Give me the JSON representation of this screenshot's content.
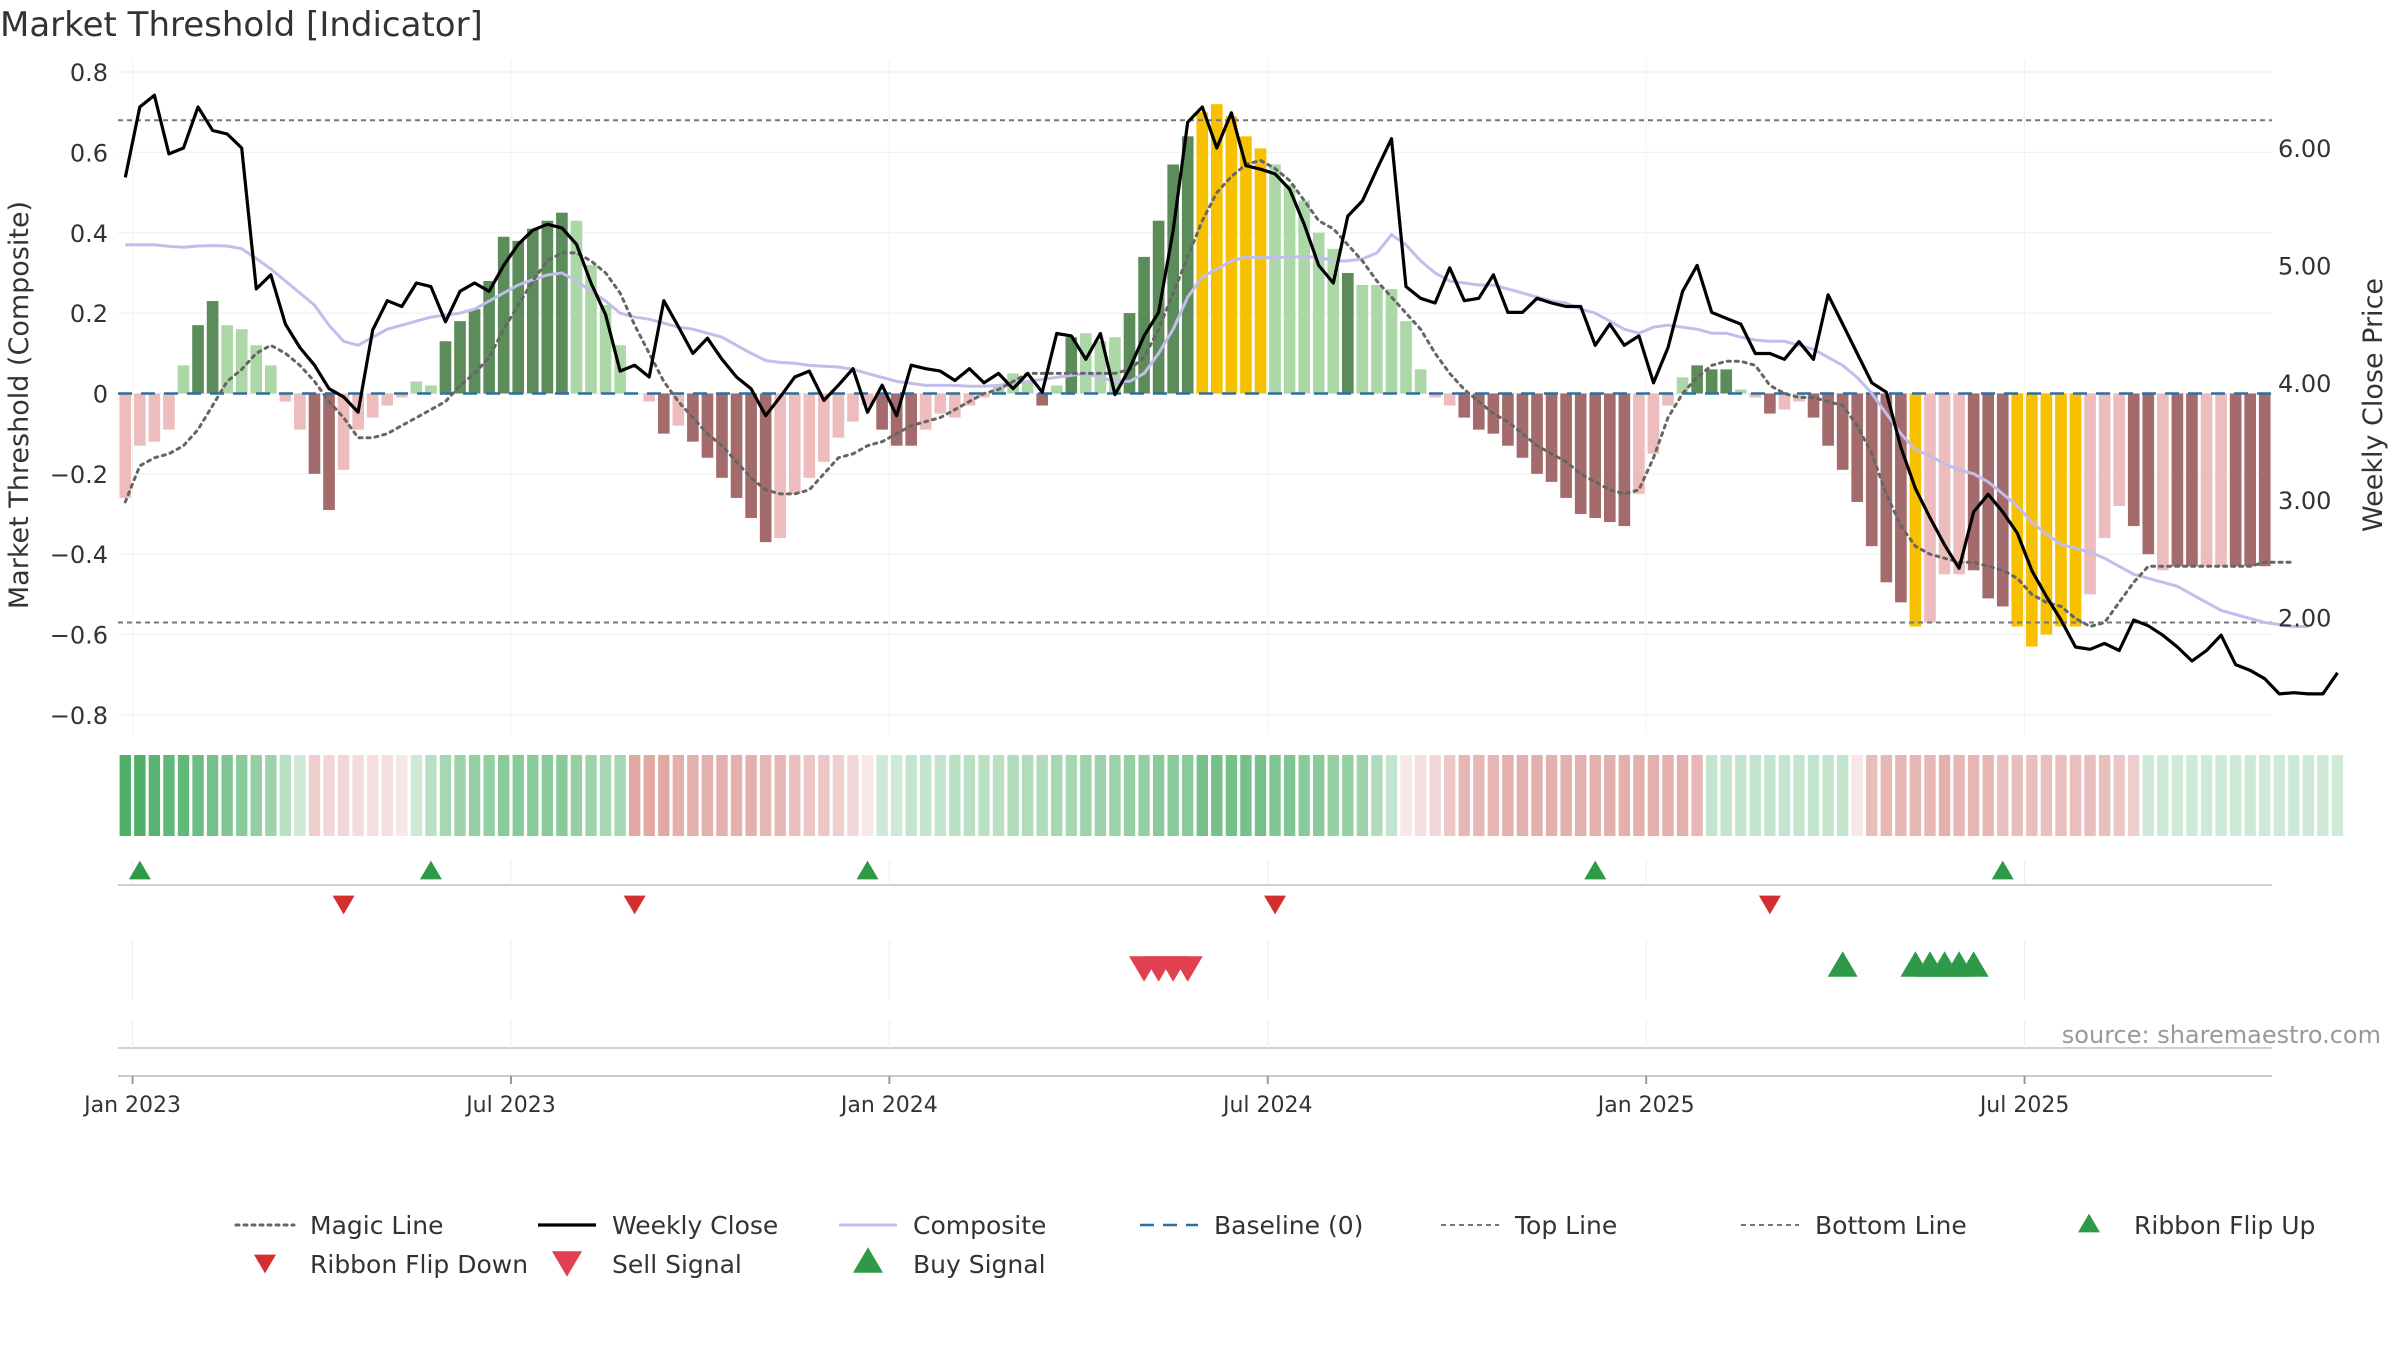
{
  "chart_data": {
    "type": "bar",
    "title": "Market Threshold [Indicator]",
    "ylabel_left": "Market Threshold (Composite)",
    "ylabel_right": "Weekly Close Price",
    "source": "source: sharemaestro.com",
    "ylim_left": [
      -0.85,
      0.83
    ],
    "ylim_right": [
      1.0,
      6.75
    ],
    "y_ticks_left": [
      {
        "value": 0.8,
        "label": "0.8"
      },
      {
        "value": 0.6,
        "label": "0.6"
      },
      {
        "value": 0.4,
        "label": "0.4"
      },
      {
        "value": 0.2,
        "label": "0.2"
      },
      {
        "value": 0.0,
        "label": "0"
      },
      {
        "value": -0.2,
        "label": "−0.2"
      },
      {
        "value": -0.4,
        "label": "−0.4"
      },
      {
        "value": -0.6,
        "label": "−0.6"
      },
      {
        "value": -0.8,
        "label": "−0.8"
      }
    ],
    "y_ticks_right": [
      {
        "value": 6.0,
        "label": "6.00"
      },
      {
        "value": 5.0,
        "label": "5.00"
      },
      {
        "value": 4.0,
        "label": "4.00"
      },
      {
        "value": 3.0,
        "label": "3.00"
      },
      {
        "value": 2.0,
        "label": "2.00"
      }
    ],
    "x_ticks": [
      {
        "index": 0.5,
        "label": "Jan 2023"
      },
      {
        "index": 26.5,
        "label": "Jul 2023"
      },
      {
        "index": 52.5,
        "label": "Jan 2024"
      },
      {
        "index": 78.5,
        "label": "Jul 2024"
      },
      {
        "index": 104.5,
        "label": "Jan 2025"
      },
      {
        "index": 130.5,
        "label": "Jul 2025"
      }
    ],
    "top_line": 0.68,
    "bottom_line": -0.57,
    "baseline": 0,
    "colors": {
      "strong_pos": "#5b8c5a",
      "weak_pos": "#acd8a7",
      "strong_neg": "#a36b6b",
      "weak_neg": "#edbcbc",
      "extreme": "#f7c100",
      "weekly_close": "#000000",
      "composite": "#c2bdea",
      "magic": "#666666",
      "baseline": "#2f6f9e",
      "guide": "#777777",
      "buy": "#2e9a47",
      "sell": "#e0404f",
      "flip_down": "#d32f2f",
      "ribbon_pos": "#3aa757",
      "ribbon_neg": "#c9605a"
    },
    "composite_bars": [
      -0.26,
      -0.13,
      -0.12,
      -0.09,
      0.07,
      0.17,
      0.23,
      0.17,
      0.16,
      0.12,
      0.07,
      -0.02,
      -0.09,
      -0.2,
      -0.29,
      -0.19,
      -0.09,
      -0.06,
      -0.03,
      -0.01,
      0.03,
      0.02,
      0.13,
      0.18,
      0.21,
      0.28,
      0.39,
      0.38,
      0.41,
      0.43,
      0.45,
      0.43,
      0.32,
      0.22,
      0.12,
      0.0,
      -0.02,
      -0.1,
      -0.08,
      -0.12,
      -0.16,
      -0.21,
      -0.26,
      -0.31,
      -0.37,
      -0.36,
      -0.25,
      -0.21,
      -0.17,
      -0.11,
      -0.07,
      -0.03,
      -0.09,
      -0.13,
      -0.13,
      -0.09,
      -0.05,
      -0.06,
      -0.03,
      -0.01,
      0.02,
      0.05,
      0.03,
      -0.03,
      0.02,
      0.14,
      0.15,
      0.13,
      0.14,
      0.2,
      0.34,
      0.43,
      0.57,
      0.64,
      0.7,
      0.72,
      0.69,
      0.64,
      0.61,
      0.57,
      0.52,
      0.48,
      0.4,
      0.36,
      0.3,
      0.27,
      0.27,
      0.26,
      0.18,
      0.06,
      -0.01,
      -0.03,
      -0.06,
      -0.09,
      -0.1,
      -0.13,
      -0.16,
      -0.2,
      -0.22,
      -0.26,
      -0.3,
      -0.31,
      -0.32,
      -0.33,
      -0.25,
      -0.15,
      -0.03,
      0.04,
      0.07,
      0.06,
      0.06,
      0.01,
      -0.01,
      -0.05,
      -0.04,
      -0.02,
      -0.06,
      -0.13,
      -0.19,
      -0.27,
      -0.38,
      -0.47,
      -0.52,
      -0.58,
      -0.57,
      -0.45,
      -0.45,
      -0.44,
      -0.51,
      -0.53,
      -0.58,
      -0.63,
      -0.6,
      -0.58,
      -0.58,
      -0.5,
      -0.36,
      -0.28,
      -0.33,
      -0.4,
      -0.44,
      -0.43,
      -0.43,
      -0.43,
      -0.43,
      -0.43,
      -0.43,
      -0.43
    ],
    "bar_class": [
      "wn",
      "wn",
      "wn",
      "wn",
      "wp",
      "sp",
      "sp",
      "wp",
      "wp",
      "wp",
      "wp",
      "wn",
      "wn",
      "sn",
      "sn",
      "wn",
      "wn",
      "wn",
      "wn",
      "wn",
      "wp",
      "wp",
      "sp",
      "sp",
      "sp",
      "sp",
      "sp",
      "sp",
      "sp",
      "sp",
      "sp",
      "wp",
      "wp",
      "wp",
      "wp",
      "wn",
      "wn",
      "sn",
      "wn",
      "sn",
      "sn",
      "sn",
      "sn",
      "sn",
      "sn",
      "wn",
      "wn",
      "wn",
      "wn",
      "wn",
      "wn",
      "wn",
      "sn",
      "sn",
      "sn",
      "wn",
      "wn",
      "wn",
      "wn",
      "wn",
      "wp",
      "wp",
      "wp",
      "sn",
      "wp",
      "sp",
      "wp",
      "wp",
      "wp",
      "sp",
      "sp",
      "sp",
      "sp",
      "sp",
      "ex",
      "ex",
      "ex",
      "ex",
      "ex",
      "wp",
      "wp",
      "wp",
      "wp",
      "wp",
      "sp",
      "wp",
      "wp",
      "wp",
      "wp",
      "wp",
      "wn",
      "wn",
      "sn",
      "sn",
      "sn",
      "sn",
      "sn",
      "sn",
      "sn",
      "sn",
      "sn",
      "sn",
      "sn",
      "sn",
      "wn",
      "wn",
      "wn",
      "wp",
      "sp",
      "sp",
      "sp",
      "wp",
      "wn",
      "sn",
      "wn",
      "wn",
      "sn",
      "sn",
      "sn",
      "sn",
      "sn",
      "sn",
      "sn",
      "ex",
      "wn",
      "wn",
      "wn",
      "sn",
      "sn",
      "sn",
      "ex",
      "ex",
      "ex",
      "ex",
      "ex",
      "wn",
      "wn",
      "wn",
      "sn",
      "sn",
      "wn",
      "sn",
      "sn",
      "wn",
      "wn",
      "sn",
      "sn",
      "sn"
    ],
    "weekly_close": [
      5.75,
      6.35,
      6.45,
      5.95,
      6.0,
      6.35,
      6.15,
      6.12,
      6.0,
      4.8,
      4.92,
      4.5,
      4.3,
      4.15,
      3.95,
      3.88,
      3.75,
      4.45,
      4.7,
      4.65,
      4.85,
      4.82,
      4.52,
      4.78,
      4.85,
      4.78,
      5.0,
      5.18,
      5.3,
      5.35,
      5.32,
      5.18,
      4.85,
      4.58,
      4.1,
      4.15,
      4.05,
      4.7,
      4.48,
      4.25,
      4.38,
      4.2,
      4.05,
      3.95,
      3.72,
      3.88,
      4.05,
      4.1,
      3.85,
      3.98,
      4.12,
      3.75,
      3.98,
      3.72,
      4.15,
      4.12,
      4.1,
      4.02,
      4.12,
      4.0,
      4.08,
      3.95,
      4.08,
      3.92,
      4.42,
      4.4,
      4.2,
      4.42,
      3.9,
      4.12,
      4.4,
      4.6,
      5.3,
      6.22,
      6.35,
      6.0,
      6.3,
      5.85,
      5.82,
      5.78,
      5.65,
      5.35,
      5.0,
      4.85,
      5.42,
      5.55,
      5.82,
      6.08,
      4.82,
      4.72,
      4.68,
      4.98,
      4.7,
      4.72,
      4.92,
      4.6,
      4.6,
      4.72,
      4.68,
      4.65,
      4.65,
      4.32,
      4.5,
      4.32,
      4.4,
      4.0,
      4.3,
      4.78,
      5.0,
      4.6,
      4.55,
      4.5,
      4.25,
      4.25,
      4.2,
      4.35,
      4.2,
      4.75,
      4.5,
      4.25,
      4.0,
      3.92,
      3.45,
      3.1,
      2.85,
      2.62,
      2.42,
      2.9,
      3.05,
      2.9,
      2.72,
      2.4,
      2.18,
      1.98,
      1.75,
      1.73,
      1.78,
      1.72,
      1.98,
      1.93,
      1.85,
      1.75,
      1.63,
      1.72,
      1.85,
      1.6,
      1.55,
      1.48,
      1.35,
      1.36,
      1.35,
      1.35,
      1.53
    ],
    "composite_line": [
      0.37,
      0.37,
      0.37,
      0.366,
      0.364,
      0.367,
      0.368,
      0.367,
      0.36,
      0.336,
      0.31,
      0.28,
      0.25,
      0.22,
      0.17,
      0.13,
      0.12,
      0.14,
      0.16,
      0.17,
      0.18,
      0.19,
      0.195,
      0.2,
      0.21,
      0.23,
      0.25,
      0.27,
      0.283,
      0.295,
      0.3,
      0.28,
      0.255,
      0.23,
      0.2,
      0.19,
      0.185,
      0.175,
      0.165,
      0.16,
      0.15,
      0.14,
      0.12,
      0.1,
      0.082,
      0.077,
      0.075,
      0.07,
      0.068,
      0.066,
      0.06,
      0.05,
      0.04,
      0.03,
      0.025,
      0.02,
      0.02,
      0.02,
      0.018,
      0.018,
      0.02,
      0.025,
      0.03,
      0.035,
      0.04,
      0.045,
      0.05,
      0.04,
      0.03,
      0.03,
      0.05,
      0.1,
      0.16,
      0.24,
      0.29,
      0.31,
      0.33,
      0.34,
      0.338,
      0.338,
      0.34,
      0.34,
      0.34,
      0.33,
      0.33,
      0.335,
      0.35,
      0.395,
      0.37,
      0.33,
      0.3,
      0.28,
      0.275,
      0.27,
      0.27,
      0.26,
      0.25,
      0.24,
      0.23,
      0.225,
      0.21,
      0.2,
      0.18,
      0.16,
      0.15,
      0.165,
      0.17,
      0.165,
      0.16,
      0.15,
      0.15,
      0.14,
      0.133,
      0.13,
      0.13,
      0.12,
      0.11,
      0.09,
      0.07,
      0.04,
      0.0,
      -0.05,
      -0.1,
      -0.14,
      -0.155,
      -0.175,
      -0.19,
      -0.2,
      -0.22,
      -0.25,
      -0.28,
      -0.32,
      -0.35,
      -0.375,
      -0.385,
      -0.395,
      -0.41,
      -0.43,
      -0.45,
      -0.46,
      -0.47,
      -0.48,
      -0.5,
      -0.52,
      -0.54,
      -0.55,
      -0.56,
      -0.57,
      -0.575,
      -0.58,
      -0.58
    ],
    "magic_line": [
      -0.27,
      -0.18,
      -0.16,
      -0.15,
      -0.13,
      -0.09,
      -0.03,
      0.03,
      0.06,
      0.1,
      0.12,
      0.1,
      0.07,
      0.03,
      -0.02,
      -0.06,
      -0.11,
      -0.11,
      -0.1,
      -0.08,
      -0.06,
      -0.04,
      -0.02,
      0.02,
      0.05,
      0.09,
      0.16,
      0.22,
      0.28,
      0.33,
      0.35,
      0.35,
      0.33,
      0.3,
      0.25,
      0.17,
      0.1,
      0.03,
      -0.02,
      -0.06,
      -0.1,
      -0.13,
      -0.17,
      -0.21,
      -0.24,
      -0.25,
      -0.25,
      -0.24,
      -0.2,
      -0.16,
      -0.15,
      -0.13,
      -0.12,
      -0.1,
      -0.08,
      -0.07,
      -0.06,
      -0.04,
      -0.02,
      0.0,
      0.01,
      0.03,
      0.05,
      0.05,
      0.05,
      0.05,
      0.05,
      0.05,
      0.05,
      0.06,
      0.09,
      0.16,
      0.25,
      0.34,
      0.43,
      0.5,
      0.54,
      0.57,
      0.58,
      0.56,
      0.53,
      0.48,
      0.43,
      0.41,
      0.37,
      0.33,
      0.28,
      0.24,
      0.2,
      0.16,
      0.1,
      0.05,
      0.01,
      -0.02,
      -0.05,
      -0.07,
      -0.1,
      -0.13,
      -0.15,
      -0.17,
      -0.2,
      -0.22,
      -0.24,
      -0.25,
      -0.24,
      -0.16,
      -0.06,
      0.0,
      0.04,
      0.07,
      0.08,
      0.08,
      0.07,
      0.02,
      0.0,
      -0.01,
      -0.01,
      -0.02,
      -0.03,
      -0.08,
      -0.15,
      -0.25,
      -0.33,
      -0.38,
      -0.4,
      -0.41,
      -0.42,
      -0.42,
      -0.43,
      -0.44,
      -0.46,
      -0.5,
      -0.52,
      -0.53,
      -0.56,
      -0.58,
      -0.57,
      -0.52,
      -0.47,
      -0.43,
      -0.43,
      -0.43,
      -0.43,
      -0.43,
      -0.43,
      -0.43,
      -0.43,
      -0.42,
      -0.42,
      -0.42
    ],
    "ribbon_intensity": [
      0.9,
      0.9,
      0.85,
      0.8,
      0.8,
      0.75,
      0.7,
      0.65,
      0.6,
      0.55,
      0.5,
      0.35,
      0.25,
      -0.3,
      -0.25,
      -0.25,
      -0.22,
      -0.2,
      -0.2,
      -0.15,
      0.25,
      0.35,
      0.45,
      0.5,
      0.55,
      0.55,
      0.6,
      0.6,
      0.6,
      0.6,
      0.6,
      0.55,
      0.5,
      0.45,
      0.45,
      -0.55,
      -0.55,
      -0.55,
      -0.5,
      -0.5,
      -0.5,
      -0.5,
      -0.5,
      -0.5,
      -0.45,
      -0.45,
      -0.4,
      -0.35,
      -0.35,
      -0.3,
      -0.25,
      -0.15,
      0.25,
      0.25,
      0.3,
      0.3,
      0.3,
      0.35,
      0.35,
      0.35,
      0.35,
      0.4,
      0.4,
      0.4,
      0.45,
      0.45,
      0.5,
      0.5,
      0.5,
      0.55,
      0.55,
      0.6,
      0.6,
      0.6,
      0.7,
      0.7,
      0.7,
      0.7,
      0.7,
      0.65,
      0.65,
      0.6,
      0.6,
      0.55,
      0.55,
      0.5,
      0.4,
      0.3,
      -0.15,
      -0.2,
      -0.25,
      -0.35,
      -0.45,
      -0.45,
      -0.45,
      -0.5,
      -0.5,
      -0.5,
      -0.5,
      -0.5,
      -0.5,
      -0.5,
      -0.5,
      -0.5,
      -0.5,
      -0.5,
      -0.5,
      -0.5,
      -0.45,
      0.3,
      0.3,
      0.3,
      0.3,
      0.3,
      0.3,
      0.3,
      0.3,
      0.3,
      0.3,
      -0.15,
      -0.4,
      -0.45,
      -0.45,
      -0.45,
      -0.45,
      -0.5,
      -0.45,
      -0.45,
      -0.45,
      -0.4,
      -0.4,
      -0.4,
      -0.4,
      -0.4,
      -0.4,
      -0.4,
      -0.4,
      -0.35,
      -0.3,
      0.25,
      0.25,
      0.25,
      0.25,
      0.25,
      0.25,
      0.25,
      0.25,
      0.25,
      0.25,
      0.25,
      0.25,
      0.25,
      0.25
    ],
    "ribbon_flip_up": [
      1,
      21,
      51,
      101,
      129
    ],
    "ribbon_flip_down": [
      15,
      35,
      79,
      113
    ],
    "sell_signals": [
      70,
      71,
      72,
      73
    ],
    "buy_signals": [
      118,
      123,
      124,
      125,
      126,
      127
    ],
    "legend": [
      {
        "key": "magic",
        "label": "Magic Line",
        "style": "dotted"
      },
      {
        "key": "weekly_close",
        "label": "Weekly Close",
        "style": "solid"
      },
      {
        "key": "composite",
        "label": "Composite",
        "style": "solid-light"
      },
      {
        "key": "baseline",
        "label": "Baseline (0)",
        "style": "dashed"
      },
      {
        "key": "top",
        "label": "Top Line",
        "style": "dashed-thin"
      },
      {
        "key": "bottom",
        "label": "Bottom Line",
        "style": "dashed-thin"
      },
      {
        "key": "flip_up",
        "label": "Ribbon Flip Up",
        "style": "tri-up"
      },
      {
        "key": "flip_down",
        "label": "Ribbon Flip Down",
        "style": "tri-down"
      },
      {
        "key": "sell",
        "label": "Sell Signal",
        "style": "tri-down-big"
      },
      {
        "key": "buy",
        "label": "Buy Signal",
        "style": "tri-up-big"
      }
    ]
  }
}
